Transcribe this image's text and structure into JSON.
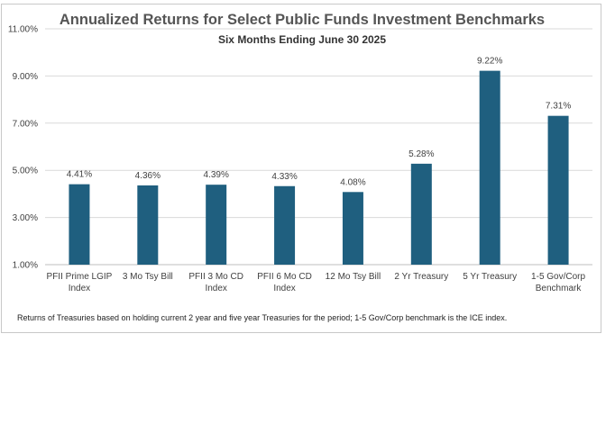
{
  "chart_data": {
    "type": "bar",
    "title": "Annualized Returns for Select Public Funds Investment Benchmarks",
    "subtitle": "Six Months Ending June 30 2025",
    "categories": [
      [
        "PFII Prime LGIP",
        "Index"
      ],
      [
        "3 Mo Tsy Bill"
      ],
      [
        "PFII 3 Mo CD",
        "Index"
      ],
      [
        "PFII 6 Mo CD",
        "Index"
      ],
      [
        "12 Mo Tsy Bill"
      ],
      [
        "2 Yr Treasury"
      ],
      [
        "5 Yr Treasury"
      ],
      [
        "1-5 Gov/Corp",
        "Benchmark"
      ]
    ],
    "values": [
      4.41,
      4.36,
      4.39,
      4.33,
      4.08,
      5.28,
      9.22,
      7.31
    ],
    "data_labels": [
      "4.41%",
      "4.36%",
      "4.39%",
      "4.33%",
      "4.08%",
      "5.28%",
      "9.22%",
      "7.31%"
    ],
    "ylim": [
      1.0,
      11.0
    ],
    "yticks": [
      1.0,
      3.0,
      5.0,
      7.0,
      9.0,
      11.0
    ],
    "ytick_labels": [
      "1.00%",
      "3.00%",
      "5.00%",
      "7.00%",
      "9.00%",
      "11.00%"
    ],
    "grid": true,
    "bar_color": "#1f5f7f",
    "footnote": "Returns of Treasuries based on  holding current 2 year and five year Treasuries for the period; 1-5 Gov/Corp benchmark is the ICE index."
  }
}
